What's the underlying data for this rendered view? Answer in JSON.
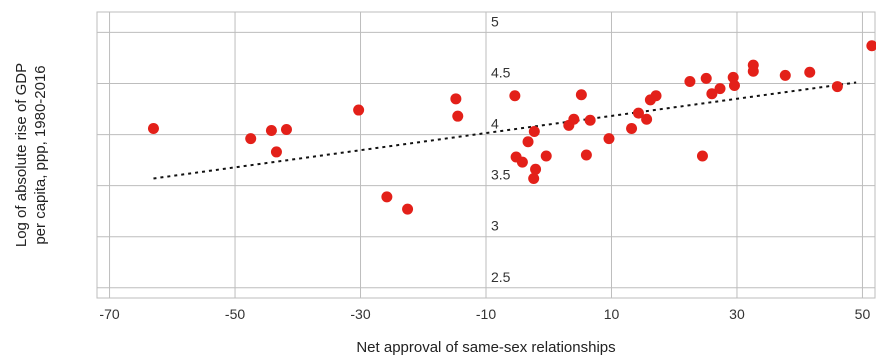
{
  "chart_data": {
    "type": "scatter",
    "title": "",
    "xlabel": "Net approval of same-sex relationships",
    "ylabel": "Log of absolute rise of GDP per capita, ppp, 1980-2016",
    "ylabel_lines": [
      "Log of absolute rise of GDP",
      "per capita, ppp, 1980-2016"
    ],
    "xlim": [
      -72,
      52
    ],
    "ylim": [
      2.4,
      5.2
    ],
    "x_ticks": [
      -70,
      -50,
      -30,
      -10,
      10,
      30,
      50
    ],
    "x_tick_labels": [
      "-70",
      "-50",
      "-30",
      "-10",
      "10",
      "30",
      "50"
    ],
    "y_ticks": [
      2.5,
      3,
      3.5,
      4,
      4.5,
      5
    ],
    "y_tick_labels": [
      "2.5",
      "3",
      "3.5",
      "4",
      "4.5",
      "5"
    ],
    "grid": true,
    "y_axis_crosses_at_x": -10,
    "point_color": "#e32019",
    "trend_color": "#111111",
    "grid_color": "#bdbdbd",
    "trendline": {
      "x": [
        -63,
        49
      ],
      "y": [
        3.57,
        4.51
      ]
    },
    "points": [
      {
        "x": -63,
        "y": 4.06
      },
      {
        "x": -47.5,
        "y": 3.96
      },
      {
        "x": -44.2,
        "y": 4.04
      },
      {
        "x": -41.8,
        "y": 4.05
      },
      {
        "x": -43.4,
        "y": 3.83
      },
      {
        "x": -30.3,
        "y": 4.24
      },
      {
        "x": -25.8,
        "y": 3.39
      },
      {
        "x": -22.5,
        "y": 3.27
      },
      {
        "x": -14.8,
        "y": 4.35
      },
      {
        "x": -14.5,
        "y": 4.18
      },
      {
        "x": -5.4,
        "y": 4.38
      },
      {
        "x": -5.2,
        "y": 3.78
      },
      {
        "x": -4.2,
        "y": 3.73
      },
      {
        "x": -3.3,
        "y": 3.93
      },
      {
        "x": -2.3,
        "y": 4.03
      },
      {
        "x": -2.1,
        "y": 3.66
      },
      {
        "x": -2.4,
        "y": 3.57
      },
      {
        "x": -0.4,
        "y": 3.79
      },
      {
        "x": 3.2,
        "y": 4.09
      },
      {
        "x": 4.0,
        "y": 4.15
      },
      {
        "x": 5.2,
        "y": 4.39
      },
      {
        "x": 6.0,
        "y": 3.8
      },
      {
        "x": 6.6,
        "y": 4.14
      },
      {
        "x": 9.6,
        "y": 3.96
      },
      {
        "x": 13.2,
        "y": 4.06
      },
      {
        "x": 14.3,
        "y": 4.21
      },
      {
        "x": 15.6,
        "y": 4.15
      },
      {
        "x": 16.2,
        "y": 4.34
      },
      {
        "x": 17.1,
        "y": 4.38
      },
      {
        "x": 22.5,
        "y": 4.52
      },
      {
        "x": 24.5,
        "y": 3.79
      },
      {
        "x": 25.1,
        "y": 4.55
      },
      {
        "x": 26.0,
        "y": 4.4
      },
      {
        "x": 27.3,
        "y": 4.45
      },
      {
        "x": 29.4,
        "y": 4.56
      },
      {
        "x": 29.6,
        "y": 4.48
      },
      {
        "x": 32.6,
        "y": 4.68
      },
      {
        "x": 32.6,
        "y": 4.62
      },
      {
        "x": 37.7,
        "y": 4.58
      },
      {
        "x": 41.6,
        "y": 4.61
      },
      {
        "x": 46.0,
        "y": 4.47
      },
      {
        "x": 51.5,
        "y": 4.87
      }
    ]
  }
}
